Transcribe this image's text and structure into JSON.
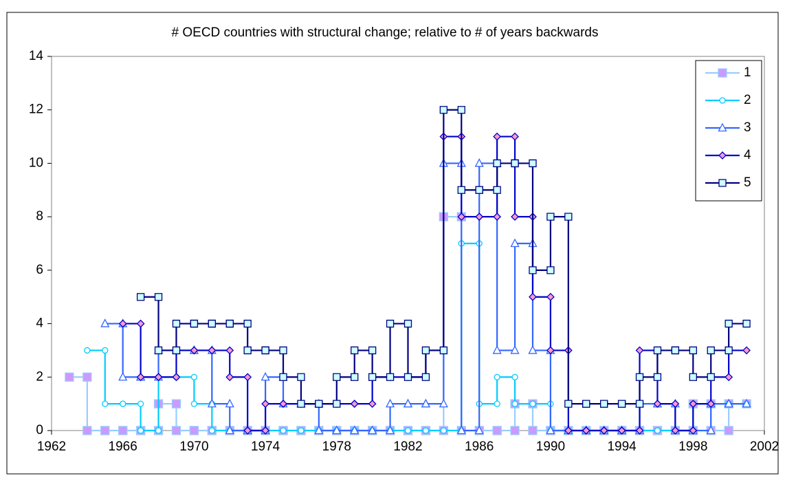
{
  "chart_data": {
    "type": "step",
    "title": "# OECD countries with structural change; relative to # of years backwards",
    "x": [
      1963,
      1964,
      1965,
      1966,
      1967,
      1968,
      1969,
      1970,
      1971,
      1972,
      1973,
      1974,
      1975,
      1976,
      1977,
      1978,
      1979,
      1980,
      1981,
      1982,
      1983,
      1984,
      1985,
      1986,
      1987,
      1988,
      1989,
      1990,
      1991,
      1992,
      1993,
      1994,
      1995,
      1996,
      1997,
      1998,
      1999,
      2000
    ],
    "xlim": [
      1962,
      2002
    ],
    "xticks": [
      1962,
      1966,
      1970,
      1974,
      1978,
      1982,
      1986,
      1990,
      1994,
      1998,
      2002
    ],
    "ylim": [
      0,
      14
    ],
    "yticks": [
      0,
      2,
      4,
      6,
      8,
      10,
      12,
      14
    ],
    "legend": "upper-right",
    "series": [
      {
        "name": "1",
        "color": "#99ccff",
        "marker": "square",
        "marker_fill": "#cc99ff",
        "values": [
          2,
          0,
          0,
          0,
          0,
          1,
          0,
          0,
          0,
          0,
          0,
          0,
          0,
          0,
          0,
          0,
          0,
          0,
          0,
          0,
          0,
          8,
          0,
          0,
          0,
          1,
          0,
          0,
          0,
          0,
          0,
          0,
          0,
          0,
          0,
          1,
          0,
          1
        ]
      },
      {
        "name": "2",
        "color": "#00ccff",
        "marker": "circle",
        "marker_fill": "#ffffff",
        "values": [
          null,
          3,
          1,
          1,
          0,
          2,
          2,
          1,
          0,
          0,
          0,
          0,
          0,
          0,
          0,
          0,
          0,
          0,
          0,
          0,
          0,
          0,
          7,
          1,
          2,
          1,
          1,
          0,
          0,
          0,
          0,
          0,
          0,
          0,
          0,
          1,
          1,
          1
        ]
      },
      {
        "name": "3",
        "color": "#3366ff",
        "marker": "triangle",
        "marker_fill": "#ffffff",
        "values": [
          null,
          null,
          4,
          2,
          2,
          3,
          3,
          3,
          1,
          0,
          0,
          2,
          1,
          1,
          0,
          0,
          0,
          0,
          1,
          1,
          1,
          10,
          0,
          10,
          3,
          7,
          3,
          0,
          0,
          0,
          0,
          0,
          1,
          1,
          0,
          0,
          1,
          1
        ]
      },
      {
        "name": "4",
        "color": "#0000cc",
        "marker": "diamond",
        "marker_fill": "#ff99cc",
        "values": [
          null,
          null,
          null,
          4,
          2,
          2,
          3,
          3,
          3,
          2,
          0,
          1,
          1,
          1,
          1,
          1,
          1,
          2,
          2,
          2,
          3,
          11,
          8,
          8,
          11,
          8,
          5,
          3,
          0,
          0,
          0,
          0,
          3,
          1,
          0,
          1,
          2,
          3
        ]
      },
      {
        "name": "5",
        "color": "#000080",
        "marker": "square",
        "marker_fill": "#ccffff",
        "values": [
          null,
          null,
          null,
          null,
          5,
          3,
          4,
          4,
          4,
          4,
          3,
          3,
          2,
          1,
          1,
          2,
          3,
          2,
          4,
          2,
          3,
          12,
          9,
          9,
          10,
          10,
          6,
          8,
          1,
          1,
          1,
          1,
          2,
          3,
          3,
          2,
          3,
          4
        ]
      }
    ]
  }
}
